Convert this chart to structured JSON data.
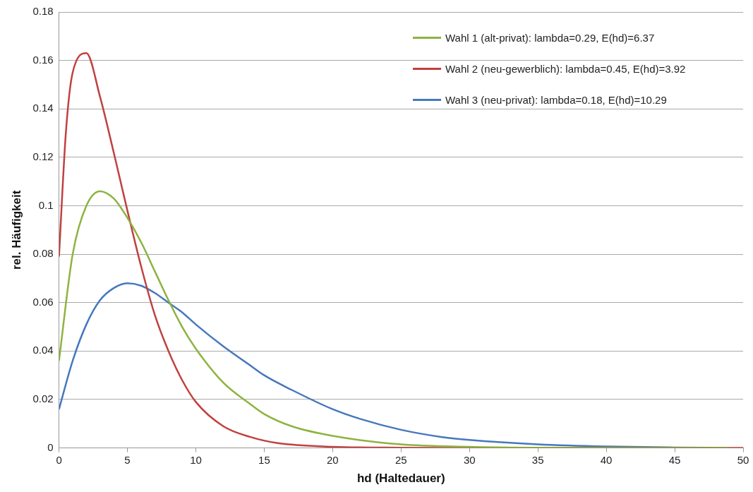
{
  "chart_data": {
    "type": "line",
    "xlabel": "hd (Haltedauer)",
    "ylabel": "rel. Häufigkeit",
    "xlim": [
      0,
      50
    ],
    "xticks": [
      0,
      5,
      10,
      15,
      20,
      25,
      30,
      35,
      40,
      45,
      50
    ],
    "ylim": [
      0,
      0.18
    ],
    "yticks": [
      0,
      0.02,
      0.04,
      0.06,
      0.08,
      0.1,
      0.12,
      0.14,
      0.16,
      0.18
    ],
    "grid": "y",
    "legend": "top right",
    "marker": "none",
    "line_style": "solid",
    "series": [
      {
        "name": "Wahl 1 (alt-privat): lambda=0.29, E(hd)=6.37",
        "color": "#8db33f",
        "x": [
          0,
          1,
          2,
          3,
          4,
          5,
          6,
          7,
          8,
          9,
          10,
          12,
          14,
          15,
          17,
          20,
          25,
          30,
          35,
          40,
          45,
          49
        ],
        "values": [
          0.036,
          0.08,
          0.1,
          0.106,
          0.103,
          0.095,
          0.085,
          0.073,
          0.061,
          0.05,
          0.041,
          0.027,
          0.018,
          0.014,
          0.009,
          0.005,
          0.0015,
          0.0005,
          0.0001,
          0,
          0,
          0
        ]
      },
      {
        "name": "Wahl 2 (neu-gewerblich): lambda=0.45, E(hd)=3.92",
        "color": "#c0413f",
        "x": [
          0,
          0.5,
          1,
          2,
          3,
          4,
          5,
          6,
          7,
          8,
          9,
          10,
          12,
          14,
          16,
          20,
          25,
          30,
          35,
          40,
          45,
          50
        ],
        "values": [
          0.079,
          0.13,
          0.155,
          0.163,
          0.145,
          0.122,
          0.098,
          0.075,
          0.055,
          0.04,
          0.028,
          0.019,
          0.009,
          0.0045,
          0.002,
          0.0005,
          0.0001,
          0,
          0,
          0,
          0,
          0
        ]
      },
      {
        "name": "Wahl 3 (neu-privat): lambda=0.18, E(hd)=10.29",
        "color": "#4678be",
        "x": [
          0,
          1,
          2,
          3,
          4,
          5,
          6,
          7,
          8,
          9,
          10,
          12,
          14,
          15,
          17,
          20,
          22,
          25,
          28,
          30,
          35,
          40,
          45,
          49
        ],
        "values": [
          0.016,
          0.036,
          0.051,
          0.061,
          0.066,
          0.068,
          0.067,
          0.064,
          0.06,
          0.056,
          0.051,
          0.042,
          0.034,
          0.03,
          0.024,
          0.016,
          0.012,
          0.0075,
          0.0045,
          0.0033,
          0.0015,
          0.0006,
          0.0002,
          0
        ]
      }
    ]
  }
}
